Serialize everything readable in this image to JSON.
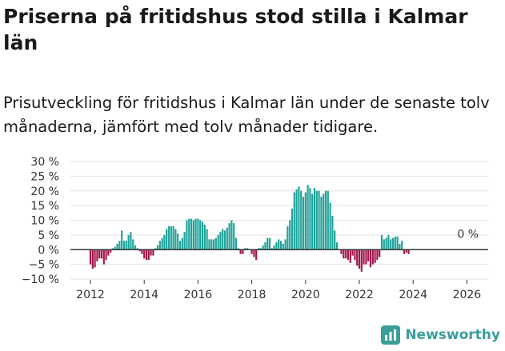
{
  "title": "Priserna på fritidshus stod stilla i Kalmar län",
  "subtitle": "Prisutveckling för fritidshus i Kalmar län under de senaste tolv månaderna, jämfört med tolv månader tidigare.",
  "brand": {
    "name": "Newsworthy",
    "icon": "newsworthy-logo-icon"
  },
  "colors": {
    "positive": "#1fa39a",
    "negative": "#a3164d",
    "grid": "#e3e3e3",
    "zero_line": "#333333"
  },
  "chart_data": {
    "type": "bar",
    "title": "Priserna på fritidshus stod stilla i Kalmar län",
    "subtitle": "Prisutveckling för fritidshus i Kalmar län under de senaste tolv månaderna, jämfört med tolv månader tidigare.",
    "xlabel": "",
    "ylabel": "",
    "x_start": "2012-01",
    "frequency": "monthly",
    "ylim": [
      -10,
      30
    ],
    "yticks": [
      -10,
      -5,
      0,
      5,
      10,
      15,
      20,
      25,
      30
    ],
    "ytick_labels": [
      "−10 %",
      "−5 %",
      "0 %",
      "5 %",
      "10 %",
      "15 %",
      "20 %",
      "25 %",
      "30 %"
    ],
    "xticks": [
      2012,
      2014,
      2016,
      2018,
      2020,
      2022,
      2024,
      2026
    ],
    "xtick_labels": [
      "2012",
      "2014",
      "2016",
      "2018",
      "2020",
      "2022",
      "2024",
      "2026"
    ],
    "grid": true,
    "annotation": {
      "text": "0 %",
      "x": "2025-08",
      "y": 0
    },
    "values": [
      -5,
      -6.5,
      -6,
      -4,
      -3,
      -3,
      -5,
      -3.5,
      -2,
      -1,
      0.5,
      1,
      2,
      3,
      6.5,
      3,
      3,
      5,
      6,
      3.5,
      1.5,
      0.5,
      -0.5,
      -1.5,
      -3,
      -3.5,
      -3.5,
      -2,
      -2,
      0.5,
      1.5,
      3,
      4,
      5,
      7,
      8,
      8,
      8,
      7,
      5.5,
      3,
      4,
      6,
      10,
      10.5,
      10.5,
      10,
      10.5,
      10.5,
      10,
      9.5,
      8.5,
      7,
      3.5,
      3.5,
      3.5,
      4,
      5,
      6,
      7,
      6.5,
      7.5,
      9,
      10,
      9,
      4,
      0.5,
      -1.5,
      -1.5,
      0.5,
      0.5,
      0,
      -1.5,
      -2.5,
      -3.5,
      0.5,
      0.5,
      1.5,
      2.5,
      4,
      4,
      0.5,
      1.5,
      2.5,
      3.5,
      3,
      2,
      3.5,
      8,
      10,
      14,
      19.5,
      20.5,
      21.5,
      20,
      18,
      19.5,
      22,
      21,
      19,
      21,
      20,
      20,
      18,
      19,
      20,
      20,
      16,
      11.5,
      6.5,
      2.5,
      0,
      -1.5,
      -3,
      -3,
      -3.5,
      -4.5,
      -2,
      -3.5,
      -5.5,
      -6.5,
      -7.5,
      -5,
      -5,
      -4,
      -6,
      -5,
      -4.5,
      -3.5,
      -2.5,
      5,
      3.5,
      4,
      5,
      3.5,
      4,
      4.5,
      4.5,
      2,
      3,
      -1.5,
      -1,
      -1.5
    ]
  }
}
